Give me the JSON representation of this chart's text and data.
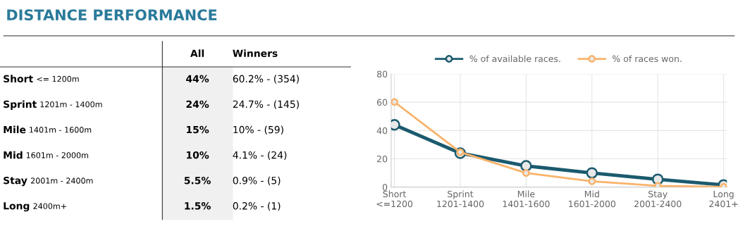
{
  "chart_data": [
    {
      "type": "other",
      "title": "DISTANCE PERFORMANCE",
      "annotations": [
        "All",
        "Winners",
        "Short",
        "<= 1200m",
        "44%",
        "60.2% - (354)",
        "Sprint",
        "1201m - 1400m",
        "24%",
        "24.7% - (145)",
        "Mile",
        "1401m - 1600m",
        "15%",
        "10% - (59)",
        "Mid",
        "1601m - 2000m",
        "10%",
        "4.1% - (24)",
        "Stay",
        "2001m - 2400m",
        "5.5%",
        "0.9% - (5)",
        "Long",
        "2400m+",
        "1.5%",
        "0.2% - (1)"
      ]
    },
    {
      "type": "line",
      "categories": [
        "Short\n<=1200",
        "Sprint\n1201-1400",
        "Mile\n1401-1600",
        "Mid\n1601-2000",
        "Stay\n2001-2400",
        "Long\n2401+"
      ],
      "series": [
        {
          "name": "% of available races.",
          "color": "#1b5a6e",
          "values": [
            44,
            24,
            15,
            10,
            5.5,
            1.5
          ]
        },
        {
          "name": "% of races won.",
          "color": "#f9b36b",
          "values": [
            60.2,
            24.7,
            10,
            4.1,
            0.9,
            0.2
          ]
        }
      ],
      "ylim": [
        0,
        80
      ],
      "yticks": [
        0,
        20,
        40,
        60,
        80
      ],
      "grid": true,
      "legend": "top",
      "marker": "circle",
      "line_style": "solid"
    }
  ]
}
